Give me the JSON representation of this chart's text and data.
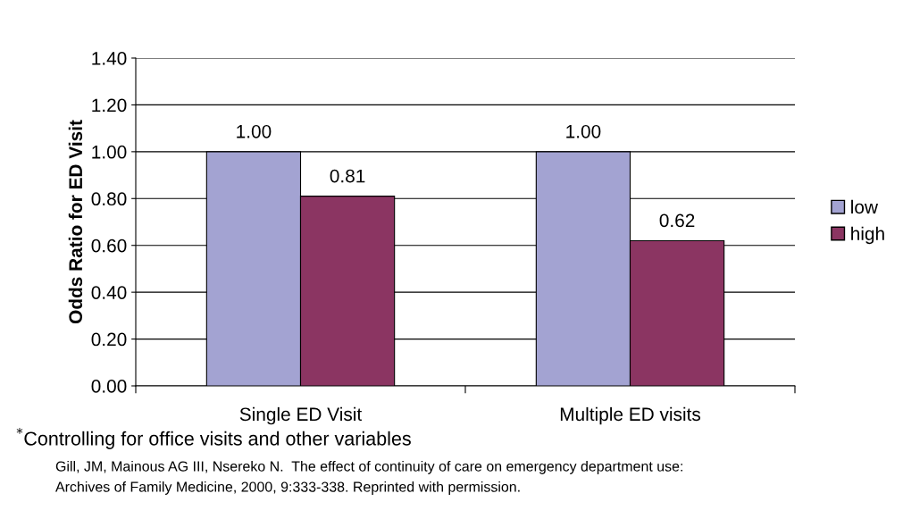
{
  "chart_data": {
    "type": "bar",
    "ylabel": "Odds Ratio for ED Visit",
    "categories": [
      "Single ED Visit",
      "Multiple ED visits"
    ],
    "series": [
      {
        "name": "low",
        "color": "#a3a3d2",
        "values": [
          1.0,
          1.0
        ],
        "value_labels": [
          "1.00",
          "1.00"
        ]
      },
      {
        "name": "high",
        "color": "#8b3562",
        "values": [
          0.81,
          0.62
        ],
        "value_labels": [
          "0.81",
          "0.62"
        ]
      }
    ],
    "ylim": [
      0,
      1.4
    ],
    "yticks": [
      {
        "value": 0,
        "label": "0.00"
      },
      {
        "value": 0.2,
        "label": "0.20"
      },
      {
        "value": 0.4,
        "label": "0.40"
      },
      {
        "value": 0.6,
        "label": "0.60"
      },
      {
        "value": 0.8,
        "label": "0.80"
      },
      {
        "value": 1.0,
        "label": "1.00"
      },
      {
        "value": 1.2,
        "label": "1.20"
      },
      {
        "value": 1.4,
        "label": "1.40"
      }
    ],
    "grid": "y",
    "legend": "right",
    "annotations": [
      "$^{*}$Controlling for office visits and other variables",
      "Gill, JM, Mainous AG III, Nsereko N.  The effect of continuity of care on emergency department use:\nArchives of Family Medicine, 2000, 9:333-338. Reprinted with permission."
    ]
  }
}
